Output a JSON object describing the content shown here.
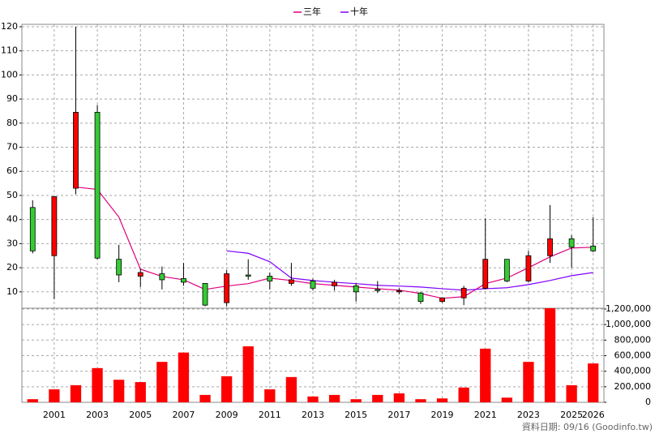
{
  "chart_data": {
    "type": "candlestick",
    "categories": [
      null,
      "2001",
      null,
      "2003",
      null,
      "2005",
      null,
      "2007",
      null,
      "2009",
      null,
      "2011",
      null,
      "2013",
      null,
      "2015",
      null,
      "2017",
      null,
      "2019",
      null,
      "2021",
      null,
      "2023",
      null,
      "2025",
      "2026"
    ],
    "open": [
      45,
      25,
      53,
      84.5,
      23.5,
      16.5,
      17.5,
      15.5,
      13.5,
      5.5,
      17,
      16.5,
      13.5,
      14.5,
      12.5,
      12.5,
      11,
      10,
      9.5,
      6,
      7.5,
      11.5,
      23.5,
      14.5,
      25,
      32,
      29
    ],
    "high": [
      48,
      49.5,
      120,
      87.5,
      29.5,
      19.5,
      20.5,
      22,
      13.5,
      19,
      23.5,
      18,
      22,
      15.5,
      15,
      13.5,
      14.5,
      11.5,
      10,
      7.5,
      12.5,
      40.5,
      23.5,
      27,
      46,
      33.5,
      41
    ],
    "low": [
      26,
      7,
      50.5,
      23.5,
      14,
      12,
      11,
      12.5,
      4,
      4,
      15,
      11,
      12.5,
      10.5,
      10.5,
      6,
      9.5,
      9,
      5,
      5.5,
      4.5,
      11,
      14,
      14,
      22,
      20,
      26.5
    ],
    "close": [
      27,
      49.5,
      84.5,
      24,
      17,
      18,
      15,
      14,
      4.5,
      17.5,
      16.5,
      14.5,
      15,
      11.5,
      14,
      10,
      10.5,
      10.5,
      6,
      7.5,
      11.5,
      23.5,
      14.5,
      25,
      32,
      28.5,
      27
    ],
    "up_color": "#ff0000",
    "down_color": "#33cc33",
    "series": [
      {
        "name": "三年",
        "color": "#e0007f",
        "values": [
          null,
          null,
          53.5,
          52.5,
          41,
          19.4,
          16.4,
          15,
          11,
          12.4,
          13.4,
          15.7,
          14.7,
          13.4,
          12.7,
          12,
          11.3,
          10.7,
          9.3,
          7.3,
          8,
          13.4,
          15.7,
          20,
          24.5,
          28.2,
          28.5
        ]
      },
      {
        "name": "十年",
        "color": "#8000ff",
        "values": [
          null,
          null,
          null,
          null,
          null,
          null,
          null,
          null,
          null,
          27,
          26,
          22.5,
          15.7,
          14.7,
          14,
          13.4,
          12.7,
          12.4,
          12,
          11.3,
          10.7,
          11.3,
          11.7,
          13,
          14.7,
          16.7,
          18
        ]
      }
    ],
    "ylim": [
      3.2,
      121
    ],
    "yticks": [
      10,
      20,
      30,
      40,
      50,
      60,
      70,
      80,
      90,
      100,
      110,
      120
    ],
    "grid": true,
    "legend": "top",
    "volume": {
      "type": "bar",
      "color": "#ff0000",
      "values": [
        40000,
        167000,
        220000,
        440000,
        290000,
        260000,
        520000,
        640000,
        95000,
        335000,
        720000,
        167000,
        325000,
        75000,
        95000,
        40000,
        95000,
        115000,
        40000,
        50000,
        190000,
        690000,
        60000,
        520000,
        1210000,
        220000,
        500000
      ],
      "ylim": [
        0,
        1210000
      ],
      "yticks": [
        {
          "value": 0,
          "label": "0"
        },
        {
          "value": 200000,
          "label": "200,000"
        },
        {
          "value": 400000,
          "label": "400,000"
        },
        {
          "value": 600000,
          "label": "600,000"
        },
        {
          "value": 800000,
          "label": "800,000"
        },
        {
          "value": 1000000,
          "label": "1,000,000"
        },
        {
          "value": 1200000,
          "label": "1,200,000"
        }
      ]
    },
    "source_note": "資料日期: 09/16 (Goodinfo.tw)"
  }
}
